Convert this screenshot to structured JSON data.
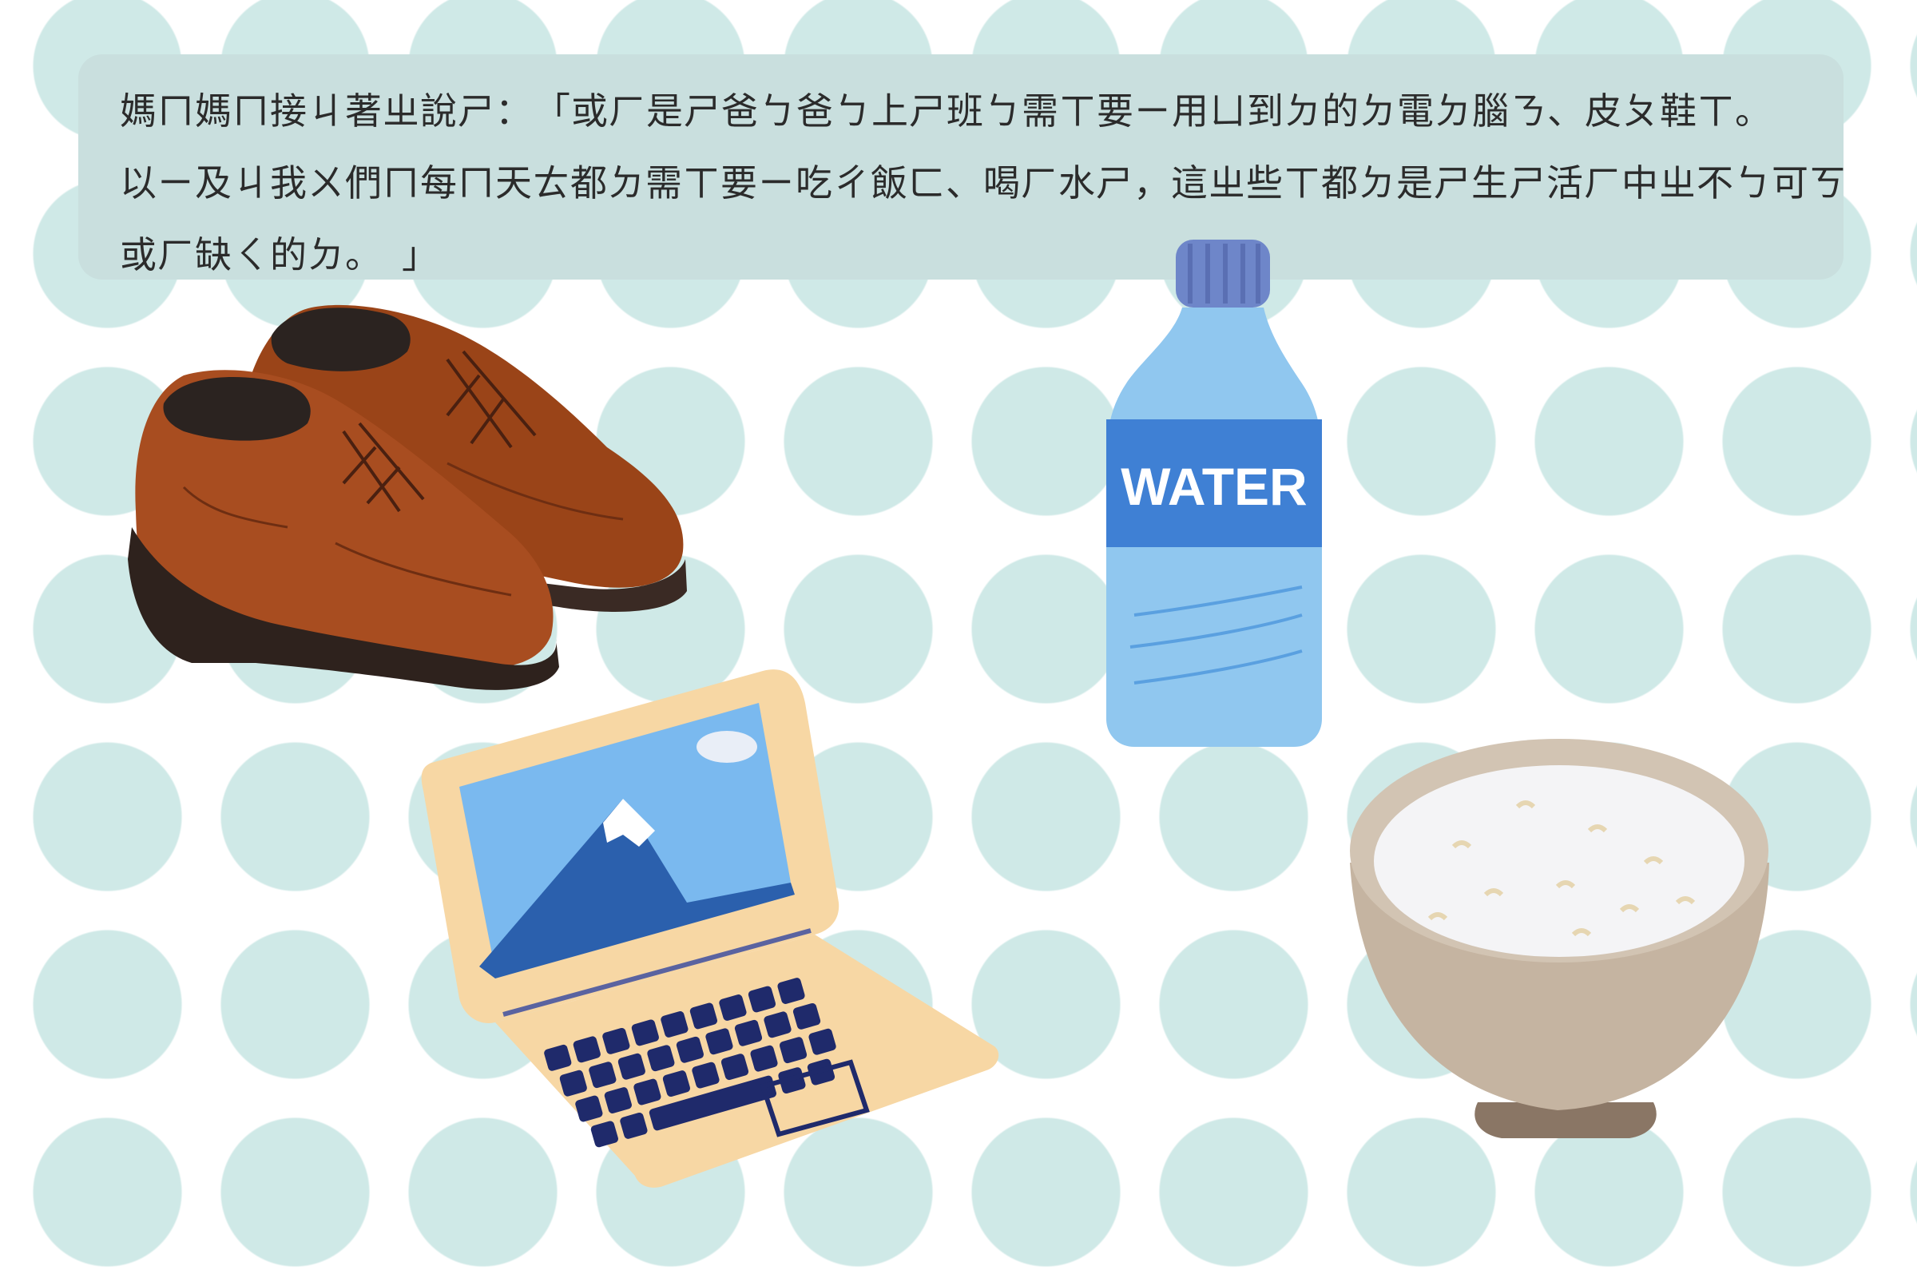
{
  "caption": {
    "lines": [
      "媽ㄇ媽ㄇ接ㄐ著ㄓ說ㄕ：　「或ㄏ是ㄕ爸ㄅ爸ㄅ上ㄕ班ㄅ需ㄒ要ㄧ用ㄩ到ㄉ的ㄉ電ㄉ腦ㄋ、皮ㄆ鞋ㄒ。",
      "以ㄧ及ㄐ我ㄨ們ㄇ每ㄇ天ㄊ都ㄉ需ㄒ要ㄧ吃ㄔ飯ㄈ、喝ㄏ水ㄕ，這ㄓ些ㄒ都ㄉ是ㄕ生ㄕ活ㄏ中ㄓ不ㄅ可ㄎ",
      "或ㄏ缺ㄑ的ㄉ。　」"
    ]
  },
  "illustrations": {
    "bottle_label": "WATER",
    "items": [
      "shoes-icon",
      "water-bottle-icon",
      "laptop-icon",
      "rice-bowl-icon"
    ]
  },
  "colors": {
    "background_dots": "#cfe9e7",
    "caption_box": "#c9dfde",
    "shoe": "#a0481f",
    "bottle": "#8fc6ee",
    "bottle_label": "#3d7fd3",
    "laptop_frame": "#f7d7a4",
    "keys": "#1f2a6b",
    "bowl": "#c7b8a6"
  }
}
